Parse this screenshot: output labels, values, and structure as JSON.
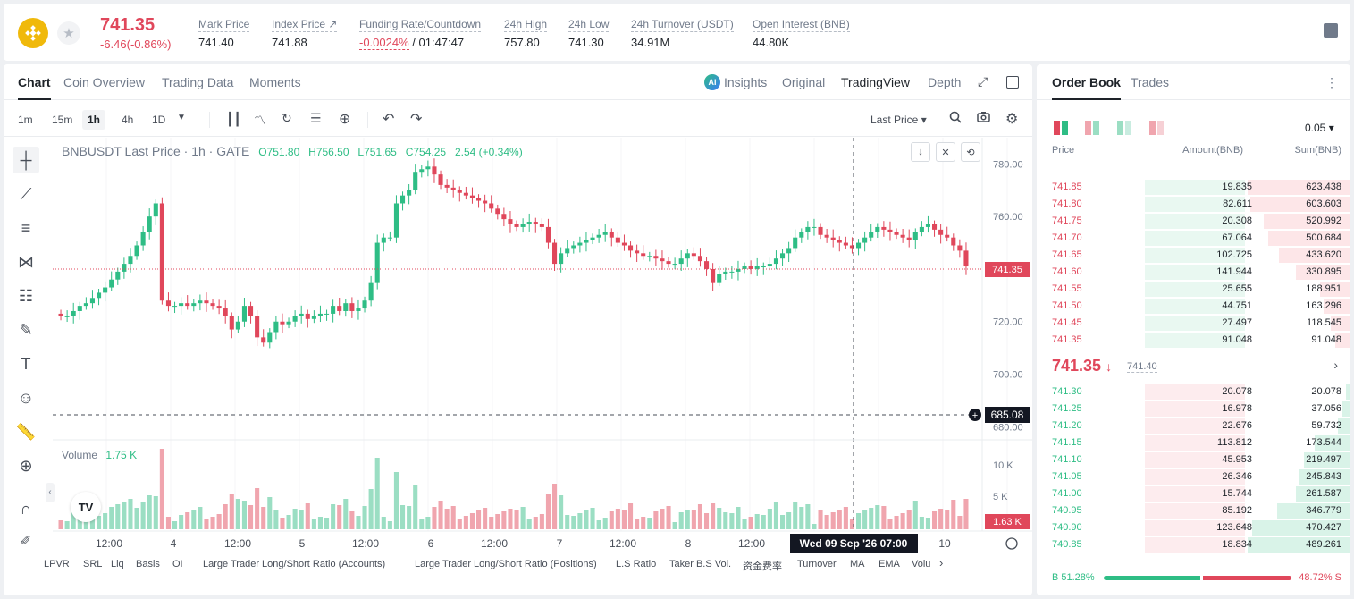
{
  "header": {
    "last_price": "741.35",
    "change": "-6.46(-0.86%)",
    "star_glyph": "★",
    "stats": [
      {
        "label": "Mark Price",
        "value": "741.40"
      },
      {
        "label": "Index Price ↗",
        "value": "741.88"
      },
      {
        "label": "Funding Rate/Countdown",
        "value_red": "-0.0024%",
        "value": " / 01:47:47"
      },
      {
        "label": "24h High",
        "value": "757.80"
      },
      {
        "label": "24h Low",
        "value": "741.30"
      },
      {
        "label": "24h Turnover (USDT)",
        "value": "34.91M"
      },
      {
        "label": "Open Interest (BNB)",
        "value": "44.80K"
      }
    ]
  },
  "chart_tabs": [
    "Chart",
    "Coin Overview",
    "Trading Data",
    "Moments"
  ],
  "view_tabs": {
    "ai_badge": "AI",
    "insights": "Insights",
    "original": "Original",
    "tradingview": "TradingView",
    "depth": "Depth"
  },
  "toolbar": {
    "timeframes": [
      "1m",
      "15m",
      "1h",
      "4h",
      "1D"
    ],
    "active_timeframe": "1h",
    "price_type": "Last Price ▾"
  },
  "legend": {
    "symbol": "BNBUSDT Last Price · 1h · GATE",
    "open": "O751.80",
    "high": "H756.50",
    "low": "L751.65",
    "close": "C754.25",
    "change": "2.54 (+0.34%)"
  },
  "volume_legend": {
    "label": "Volume",
    "value": "1.75 K"
  },
  "price_axis": [
    "780.00",
    "760.00",
    "740.00",
    "720.00",
    "700.00",
    "680.00"
  ],
  "volume_axis": [
    "10 K",
    "5 K"
  ],
  "time_axis": [
    "12:00",
    "4",
    "12:00",
    "5",
    "12:00",
    "6",
    "12:00",
    "7",
    "12:00",
    "8",
    "12:00",
    "10"
  ],
  "crosshair": {
    "price": "685.08",
    "time": "Wed 09 Sep '26   07:00"
  },
  "current_price_tag": "741.35",
  "current_volume_tag": "1.63 K",
  "indicators": [
    "LPVR",
    "SRL",
    "Liq",
    "Basis",
    "OI",
    "Large Trader Long/Short Ratio (Accounts)",
    "Large Trader Long/Short Ratio (Positions)",
    "L.S Ratio",
    "Taker B.S Vol.",
    "资金费率",
    "Turnover",
    "MA",
    "EMA",
    "Volu"
  ],
  "chart_data": {
    "type": "candlestick",
    "ylim": [
      675,
      790
    ],
    "grid": true,
    "candles_close_path": [
      722,
      722,
      724,
      726,
      727,
      729,
      731,
      733,
      736,
      739,
      742,
      745,
      749,
      754,
      760,
      765,
      728,
      726,
      726,
      727,
      726,
      727,
      728,
      727,
      726,
      725,
      722,
      717,
      720,
      726,
      722,
      714,
      712,
      716,
      720,
      719,
      720,
      722,
      723,
      721,
      722,
      723,
      723,
      726,
      724,
      727,
      724,
      725,
      728,
      735,
      750,
      752,
      752,
      765,
      768,
      770,
      777,
      778,
      779,
      776,
      772,
      771,
      770,
      769,
      768,
      767,
      766,
      765,
      763,
      761,
      759,
      757,
      756,
      757,
      758,
      757,
      756,
      750,
      742,
      746,
      748,
      749,
      750,
      751,
      752,
      753,
      754,
      752,
      750,
      749,
      747,
      746,
      745,
      745,
      744,
      743,
      742,
      742,
      744,
      746,
      745,
      743,
      740,
      735,
      738,
      739,
      739,
      740,
      741,
      740,
      741,
      741,
      742,
      744,
      746,
      748,
      752,
      754,
      756,
      756,
      753,
      752,
      751,
      750,
      749,
      748,
      750,
      752,
      754,
      756,
      755,
      754,
      753,
      752,
      751,
      754,
      756,
      757,
      755,
      753,
      752,
      749,
      747,
      741
    ]
  },
  "order_book": {
    "tabs": [
      "Order Book",
      "Trades"
    ],
    "precision": "0.05 ▾",
    "headers": {
      "price": "Price",
      "amount": "Amount(BNB)",
      "sum": "Sum(BNB)"
    },
    "asks": [
      {
        "price": "741.85",
        "amount": "19.835",
        "sum": "623.438",
        "depth": 1.0
      },
      {
        "price": "741.80",
        "amount": "82.611",
        "sum": "603.603",
        "depth": 0.97
      },
      {
        "price": "741.75",
        "amount": "20.308",
        "sum": "520.992",
        "depth": 0.84
      },
      {
        "price": "741.70",
        "amount": "67.064",
        "sum": "500.684",
        "depth": 0.8
      },
      {
        "price": "741.65",
        "amount": "102.725",
        "sum": "433.620",
        "depth": 0.7
      },
      {
        "price": "741.60",
        "amount": "141.944",
        "sum": "330.895",
        "depth": 0.53
      },
      {
        "price": "741.55",
        "amount": "25.655",
        "sum": "188.951",
        "depth": 0.3
      },
      {
        "price": "741.50",
        "amount": "44.751",
        "sum": "163.296",
        "depth": 0.26
      },
      {
        "price": "741.45",
        "amount": "27.497",
        "sum": "118.545",
        "depth": 0.19
      },
      {
        "price": "741.35",
        "amount": "91.048",
        "sum": "91.048",
        "depth": 0.15
      }
    ],
    "mid": {
      "price": "741.35",
      "arrow": "↓",
      "mark": "741.40"
    },
    "bids": [
      {
        "price": "741.30",
        "amount": "20.078",
        "sum": "20.078",
        "depth": 0.04
      },
      {
        "price": "741.25",
        "amount": "16.978",
        "sum": "37.056",
        "depth": 0.08
      },
      {
        "price": "741.20",
        "amount": "22.676",
        "sum": "59.732",
        "depth": 0.12
      },
      {
        "price": "741.15",
        "amount": "113.812",
        "sum": "173.544",
        "depth": 0.35
      },
      {
        "price": "741.10",
        "amount": "45.953",
        "sum": "219.497",
        "depth": 0.45
      },
      {
        "price": "741.05",
        "amount": "26.346",
        "sum": "245.843",
        "depth": 0.5
      },
      {
        "price": "741.00",
        "amount": "15.744",
        "sum": "261.587",
        "depth": 0.53
      },
      {
        "price": "740.95",
        "amount": "85.192",
        "sum": "346.779",
        "depth": 0.71
      },
      {
        "price": "740.90",
        "amount": "123.648",
        "sum": "470.427",
        "depth": 0.96
      },
      {
        "price": "740.85",
        "amount": "18.834",
        "sum": "489.261",
        "depth": 1.0
      }
    ],
    "ratio": {
      "buy": "B 51.28%",
      "sell": "48.72% S",
      "buy_fraction": 0.5128
    }
  },
  "colors": {
    "up": "#2ebd85",
    "down": "#e0475b",
    "up_vol": "#9bdec3",
    "down_vol": "#f0a5ae"
  }
}
